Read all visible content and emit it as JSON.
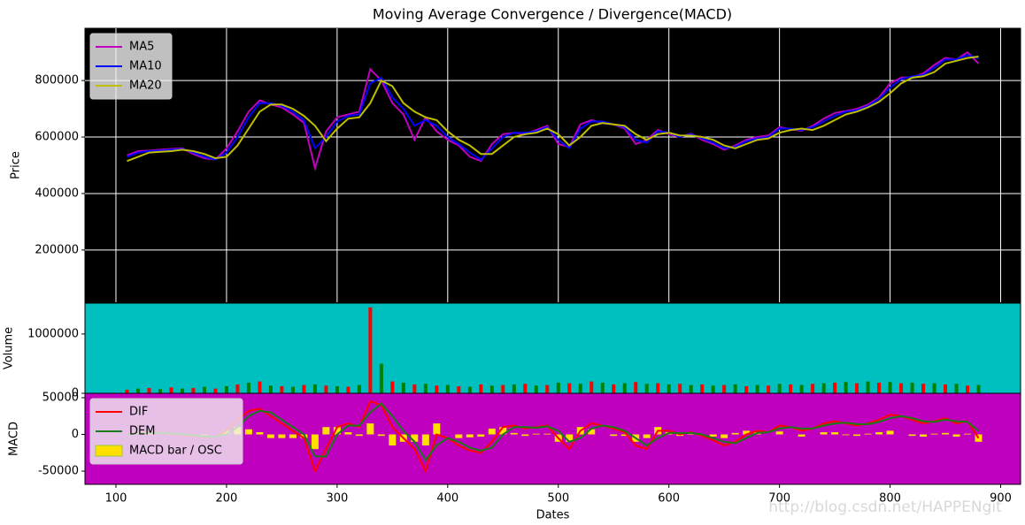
{
  "chart_data": [
    {
      "type": "line",
      "title": "Moving Average Convergence / Divergence(MACD)",
      "ylabel": "Price",
      "background": "#000000",
      "grid": true,
      "legend": "upper left",
      "xlim": [
        72,
        918
      ],
      "ylim": [
        15000,
        985000
      ],
      "yticks": [
        200000,
        400000,
        600000,
        800000
      ],
      "x": [
        110,
        120,
        130,
        140,
        150,
        160,
        170,
        180,
        190,
        200,
        210,
        220,
        230,
        240,
        250,
        260,
        270,
        280,
        290,
        300,
        310,
        320,
        330,
        340,
        350,
        360,
        370,
        380,
        390,
        400,
        410,
        420,
        430,
        440,
        450,
        460,
        470,
        480,
        490,
        500,
        510,
        520,
        530,
        540,
        550,
        560,
        570,
        580,
        590,
        600,
        610,
        620,
        630,
        640,
        650,
        660,
        670,
        680,
        690,
        700,
        710,
        720,
        730,
        740,
        750,
        760,
        770,
        780,
        790,
        800,
        810,
        820,
        830,
        840,
        850,
        860,
        870,
        880
      ],
      "series": [
        {
          "name": "MA5",
          "color": "#bf00bf",
          "values": [
            535000,
            550000,
            552000,
            555000,
            558000,
            560000,
            540000,
            525000,
            520000,
            560000,
            620000,
            690000,
            730000,
            715000,
            705000,
            680000,
            650000,
            490000,
            620000,
            670000,
            680000,
            690000,
            840000,
            800000,
            720000,
            680000,
            590000,
            670000,
            620000,
            590000,
            570000,
            530000,
            515000,
            575000,
            610000,
            615000,
            610000,
            625000,
            640000,
            575000,
            565000,
            645000,
            660000,
            650000,
            645000,
            630000,
            575000,
            590000,
            625000,
            610000,
            600000,
            612000,
            590000,
            575000,
            555000,
            570000,
            590000,
            600000,
            605000,
            635000,
            628000,
            622000,
            640000,
            665000,
            685000,
            692000,
            700000,
            715000,
            740000,
            790000,
            810000,
            812000,
            825000,
            855000,
            880000,
            875000,
            900000,
            860000
          ]
        },
        {
          "name": "MA10",
          "color": "#0000ff",
          "values": [
            530000,
            545000,
            550000,
            552000,
            555000,
            558000,
            545000,
            530000,
            520000,
            545000,
            600000,
            670000,
            720000,
            720000,
            710000,
            690000,
            660000,
            560000,
            600000,
            655000,
            675000,
            680000,
            790000,
            810000,
            740000,
            700000,
            640000,
            660000,
            640000,
            600000,
            575000,
            545000,
            520000,
            560000,
            600000,
            615000,
            615000,
            620000,
            635000,
            590000,
            560000,
            630000,
            655000,
            655000,
            645000,
            635000,
            590000,
            580000,
            620000,
            615000,
            600000,
            610000,
            595000,
            580000,
            560000,
            565000,
            585000,
            595000,
            600000,
            630000,
            630000,
            625000,
            635000,
            655000,
            675000,
            690000,
            695000,
            710000,
            735000,
            775000,
            805000,
            815000,
            820000,
            845000,
            875000,
            875000,
            890000,
            880000
          ]
        },
        {
          "name": "MA20",
          "color": "#bfbf00",
          "values": [
            515000,
            530000,
            545000,
            548000,
            550000,
            555000,
            550000,
            540000,
            525000,
            530000,
            570000,
            630000,
            690000,
            715000,
            715000,
            700000,
            675000,
            640000,
            585000,
            630000,
            665000,
            670000,
            720000,
            800000,
            780000,
            720000,
            690000,
            670000,
            660000,
            620000,
            590000,
            570000,
            540000,
            540000,
            570000,
            600000,
            610000,
            615000,
            630000,
            610000,
            570000,
            600000,
            640000,
            650000,
            645000,
            640000,
            610000,
            590000,
            610000,
            615000,
            605000,
            605000,
            600000,
            590000,
            570000,
            560000,
            575000,
            590000,
            595000,
            615000,
            625000,
            630000,
            625000,
            640000,
            660000,
            680000,
            690000,
            705000,
            725000,
            755000,
            790000,
            810000,
            815000,
            830000,
            860000,
            870000,
            880000,
            885000
          ]
        }
      ]
    },
    {
      "type": "bar",
      "ylabel": "Volume",
      "background": "#00bfbf",
      "colors": [
        "#ff0000",
        "#008000"
      ],
      "xlim": [
        72,
        918
      ],
      "ylim": [
        0,
        1520000
      ],
      "yticks": [
        0,
        1000000
      ],
      "x": [
        110,
        120,
        130,
        140,
        150,
        160,
        170,
        180,
        190,
        200,
        210,
        220,
        230,
        240,
        250,
        260,
        270,
        280,
        290,
        300,
        310,
        320,
        330,
        340,
        350,
        360,
        370,
        380,
        390,
        400,
        410,
        420,
        430,
        440,
        450,
        460,
        470,
        480,
        490,
        500,
        510,
        520,
        530,
        540,
        550,
        560,
        570,
        580,
        590,
        600,
        610,
        620,
        630,
        640,
        650,
        660,
        670,
        680,
        690,
        700,
        710,
        720,
        730,
        740,
        750,
        760,
        770,
        780,
        790,
        800,
        810,
        820,
        830,
        840,
        850,
        860,
        870,
        880
      ],
      "values": [
        60000,
        80000,
        90000,
        70000,
        100000,
        80000,
        90000,
        110000,
        80000,
        120000,
        150000,
        180000,
        200000,
        130000,
        120000,
        110000,
        140000,
        150000,
        130000,
        120000,
        110000,
        140000,
        1450000,
        500000,
        200000,
        180000,
        150000,
        160000,
        130000,
        140000,
        120000,
        110000,
        150000,
        130000,
        140000,
        150000,
        160000,
        130000,
        140000,
        180000,
        170000,
        160000,
        200000,
        180000,
        150000,
        170000,
        190000,
        160000,
        170000,
        150000,
        160000,
        140000,
        150000,
        130000,
        140000,
        150000,
        120000,
        140000,
        130000,
        160000,
        150000,
        140000,
        160000,
        170000,
        180000,
        190000,
        170000,
        200000,
        180000,
        190000,
        170000,
        180000,
        160000,
        170000,
        150000,
        160000,
        130000,
        140000
      ]
    },
    {
      "type": "combo",
      "ylabel": "MACD",
      "xlabel": "Dates",
      "background": "#bf00bf",
      "legend": "upper left",
      "xlim": [
        72,
        918
      ],
      "xticks": [
        100,
        200,
        300,
        400,
        500,
        600,
        700,
        800,
        900
      ],
      "ylim": [
        -68000,
        56000
      ],
      "yticks": [
        -50000,
        0,
        50000
      ],
      "x": [
        110,
        120,
        130,
        140,
        150,
        160,
        170,
        180,
        190,
        200,
        210,
        220,
        230,
        240,
        250,
        260,
        270,
        280,
        290,
        300,
        310,
        320,
        330,
        340,
        350,
        360,
        370,
        380,
        390,
        400,
        410,
        420,
        430,
        440,
        450,
        460,
        470,
        480,
        490,
        500,
        510,
        520,
        530,
        540,
        550,
        560,
        570,
        580,
        590,
        600,
        610,
        620,
        630,
        640,
        650,
        660,
        670,
        680,
        690,
        700,
        710,
        720,
        730,
        740,
        750,
        760,
        770,
        780,
        790,
        800,
        810,
        820,
        830,
        840,
        850,
        860,
        870,
        880
      ],
      "series": [
        {
          "name": "DIF",
          "kind": "line",
          "color": "#ff0000",
          "values": [
            0,
            2000,
            3000,
            2000,
            1000,
            0,
            -2000,
            -4000,
            -3000,
            5000,
            20000,
            32000,
            35000,
            25000,
            15000,
            5000,
            -5000,
            -50000,
            -20000,
            10000,
            15000,
            10000,
            45000,
            40000,
            10000,
            -5000,
            -20000,
            -50000,
            0,
            -5000,
            -15000,
            -22000,
            -25000,
            -10000,
            10000,
            12000,
            8000,
            10000,
            12000,
            -5000,
            -20000,
            5000,
            15000,
            12000,
            8000,
            3000,
            -15000,
            -20000,
            5000,
            5000,
            0,
            3000,
            -2000,
            -8000,
            -15000,
            -10000,
            0,
            5000,
            3000,
            12000,
            10000,
            5000,
            8000,
            15000,
            18000,
            15000,
            12000,
            15000,
            20000,
            27000,
            25000,
            20000,
            15000,
            18000,
            22000,
            15000,
            18000,
            -5000
          ]
        },
        {
          "name": "DEM",
          "kind": "line",
          "color": "#1a7a1a",
          "values": [
            0,
            1000,
            2000,
            2000,
            1500,
            500,
            -1000,
            -3000,
            -3000,
            0,
            10000,
            25000,
            32000,
            30000,
            20000,
            10000,
            0,
            -30000,
            -30000,
            0,
            12000,
            12000,
            30000,
            42000,
            25000,
            5000,
            -10000,
            -35000,
            -15000,
            -5000,
            -10000,
            -18000,
            -22000,
            -18000,
            0,
            10000,
            10000,
            9000,
            11000,
            5000,
            -10000,
            -5000,
            8000,
            12000,
            10000,
            5000,
            -5000,
            -15000,
            -5000,
            2000,
            2000,
            2000,
            0,
            -5000,
            -10000,
            -12000,
            -5000,
            2000,
            3000,
            8000,
            10000,
            8000,
            8000,
            12000,
            15000,
            16000,
            14000,
            14000,
            17000,
            22000,
            25000,
            22000,
            18000,
            17000,
            20000,
            18000,
            17000,
            5000
          ]
        },
        {
          "name": "MACD bar / OSC",
          "kind": "bar",
          "color": "#ffe000",
          "values": [
            0,
            1000,
            1000,
            0,
            -500,
            -500,
            -1000,
            -1000,
            0,
            5000,
            10000,
            7000,
            3000,
            -5000,
            -5000,
            -5000,
            -5000,
            -20000,
            10000,
            10000,
            3000,
            -2000,
            15000,
            -2000,
            -15000,
            -10000,
            -10000,
            -15000,
            15000,
            0,
            -5000,
            -4000,
            -3000,
            8000,
            10000,
            2000,
            -2000,
            1000,
            1000,
            -10000,
            -10000,
            10000,
            7000,
            0,
            -2000,
            -2000,
            -10000,
            -5000,
            10000,
            3000,
            -2000,
            1000,
            -2000,
            -3000,
            -5000,
            2000,
            5000,
            3000,
            0,
            4000,
            0,
            -3000,
            0,
            3000,
            3000,
            -1000,
            -2000,
            1000,
            3000,
            5000,
            0,
            -2000,
            -3000,
            1000,
            2000,
            -3000,
            1000,
            -10000
          ]
        }
      ]
    }
  ],
  "watermark": "http://blog.csdn.net/HAPPENgit"
}
